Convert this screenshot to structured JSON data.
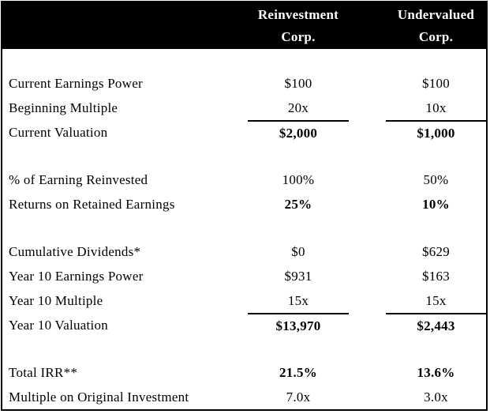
{
  "colors": {
    "header_bg": "#000000",
    "header_text": "#ffffff",
    "body_text": "#000000",
    "background": "#ffffff",
    "border": "#000000"
  },
  "chart_data": {
    "type": "table",
    "title": "",
    "columns": [
      "Reinvestment Corp.",
      "Undervalued Corp."
    ],
    "header": {
      "col1_line1": "Reinvestment",
      "col1_line2": "Corp.",
      "col2_line1": "Undervalued",
      "col2_line2": "Corp."
    },
    "rows": [
      {
        "label": "Current Earnings Power",
        "values": [
          "$100",
          "$100"
        ],
        "bold": false,
        "topline": false,
        "section_start": false
      },
      {
        "label": "Beginning Multiple",
        "values": [
          "20x",
          "10x"
        ],
        "bold": false,
        "topline": false,
        "section_start": false
      },
      {
        "label": "Current Valuation",
        "values": [
          "$2,000",
          "$1,000"
        ],
        "bold": true,
        "topline": true,
        "section_start": false
      },
      {
        "label": "% of Earning Reinvested",
        "values": [
          "100%",
          "50%"
        ],
        "bold": false,
        "topline": false,
        "section_start": true
      },
      {
        "label": "Returns on Retained Earnings",
        "values": [
          "25%",
          "10%"
        ],
        "bold": true,
        "topline": false,
        "section_start": false
      },
      {
        "label": "Cumulative Dividends*",
        "values": [
          "$0",
          "$629"
        ],
        "bold": false,
        "topline": false,
        "section_start": true
      },
      {
        "label": "Year 10 Earnings Power",
        "values": [
          "$931",
          "$163"
        ],
        "bold": false,
        "topline": false,
        "section_start": false
      },
      {
        "label": "Year 10 Multiple",
        "values": [
          "15x",
          "15x"
        ],
        "bold": false,
        "topline": false,
        "section_start": false
      },
      {
        "label": "Year 10 Valuation",
        "values": [
          "$13,970",
          "$2,443"
        ],
        "bold": true,
        "topline": true,
        "section_start": false
      },
      {
        "label": "Total IRR**",
        "values": [
          "21.5%",
          "13.6%"
        ],
        "bold": true,
        "topline": false,
        "section_start": true
      },
      {
        "label": "Multiple on Original Investment",
        "values": [
          "7.0x",
          "3.0x"
        ],
        "bold": false,
        "topline": false,
        "section_start": false
      }
    ]
  }
}
